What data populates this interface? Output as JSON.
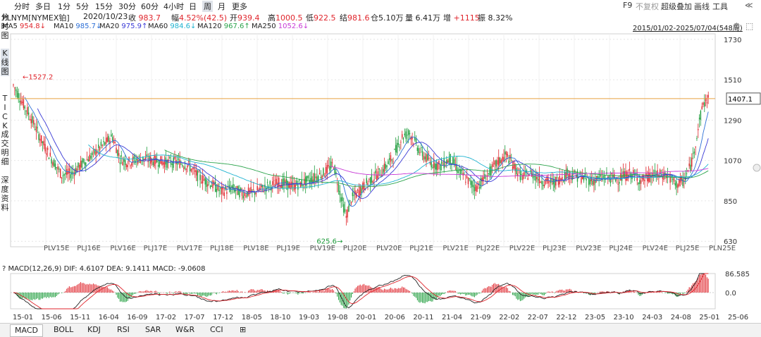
{
  "toolbar": {
    "items": [
      "分时",
      "多日",
      "1分",
      "5分",
      "15分",
      "30分",
      "60分",
      "4小时",
      "日",
      "周",
      "月",
      "更多"
    ],
    "active_index": 9,
    "right": {
      "f9": "F9",
      "fuquan": "不复权",
      "overlay": "超级叠加",
      "draw": "画线",
      "tools": "工具",
      "collapse": "≪"
    }
  },
  "info": {
    "symbol": "PLNYM[NYMEX铂]",
    "date": "2020/10/23",
    "close_label": "收",
    "close": "983.7",
    "change_label": "幅",
    "change": "4.52%(42.5)",
    "open_label": "开",
    "open": "939.4",
    "high_label": "高",
    "high": "1000.5",
    "low_label": "低",
    "low": "922.5",
    "settle_label": "结",
    "settle": "981.6",
    "oi_label": "仓",
    "oi": "5.10万",
    "vol_label": "量",
    "vol": "6.41万",
    "inc_label": "增",
    "inc": "+1115",
    "amp_label": "振",
    "amp": "8.32%",
    "range": "2015/01/02-2025/07/04(548周)"
  },
  "ma": [
    {
      "label": "MA5",
      "value": "954.8↓",
      "color": "#e0262d"
    },
    {
      "label": "MA10",
      "value": "985.7↓",
      "color": "#2c6fd6"
    },
    {
      "label": "MA20",
      "value": "975.9↑",
      "color": "#3a3ad6"
    },
    {
      "label": "MA60",
      "value": "984.6↓",
      "color": "#1fb3d0"
    },
    {
      "label": "MA120",
      "value": "967.6↑",
      "color": "#2aa34a"
    },
    {
      "label": "MA250",
      "value": "1052.6↓",
      "color": "#c83ad6"
    }
  ],
  "side": {
    "fenshi": "分时图",
    "kline": "K线图",
    "tick": "TICK",
    "detail": "成交明细",
    "depth": "深度资料"
  },
  "chart_data": {
    "type": "candlestick",
    "timeframe": "weekly",
    "y_ticks": [
      1730,
      1510,
      1290,
      1070,
      850,
      630
    ],
    "ylim": [
      600,
      1760
    ],
    "horizontal_line": 1407.1,
    "annotations": {
      "max": "1527.2",
      "min": "625.6"
    },
    "contract_labels": [
      "PLV15E",
      "PLJ16E",
      "PLV16E",
      "PLJ17E",
      "PLV17E",
      "PLJ18E",
      "PLV18E",
      "PLJ19E",
      "PLV19E",
      "PLJ20E",
      "PLV20E",
      "PLJ21E",
      "PLV21E",
      "PLJ22E",
      "PLV22E",
      "PLJ23E",
      "PLV23E",
      "PLJ24E",
      "PLV24E",
      "PLJ25E",
      "PLN25E"
    ],
    "price_path": [
      [
        0,
        1480
      ],
      [
        6,
        1400
      ],
      [
        14,
        1300
      ],
      [
        22,
        1180
      ],
      [
        30,
        1080
      ],
      [
        38,
        990
      ],
      [
        46,
        1000
      ],
      [
        54,
        1050
      ],
      [
        62,
        1100
      ],
      [
        70,
        1150
      ],
      [
        78,
        1200
      ],
      [
        84,
        1080
      ],
      [
        90,
        1060
      ],
      [
        100,
        1080
      ],
      [
        110,
        1070
      ],
      [
        120,
        1060
      ],
      [
        130,
        1060
      ],
      [
        138,
        1040
      ],
      [
        146,
        980
      ],
      [
        156,
        940
      ],
      [
        164,
        900
      ],
      [
        172,
        920
      ],
      [
        180,
        890
      ],
      [
        190,
        900
      ],
      [
        200,
        930
      ],
      [
        210,
        950
      ],
      [
        220,
        930
      ],
      [
        232,
        960
      ],
      [
        244,
        1000
      ],
      [
        252,
        1050
      ],
      [
        258,
        870
      ],
      [
        262,
        760
      ],
      [
        266,
        860
      ],
      [
        272,
        900
      ],
      [
        280,
        960
      ],
      [
        290,
        1010
      ],
      [
        298,
        1080
      ],
      [
        306,
        1200
      ],
      [
        312,
        1220
      ],
      [
        320,
        1120
      ],
      [
        328,
        1060
      ],
      [
        336,
        1040
      ],
      [
        344,
        1080
      ],
      [
        352,
        1000
      ],
      [
        358,
        960
      ],
      [
        364,
        920
      ],
      [
        372,
        980
      ],
      [
        380,
        1050
      ],
      [
        388,
        1100
      ],
      [
        394,
        1040
      ],
      [
        400,
        980
      ],
      [
        408,
        1000
      ],
      [
        416,
        960
      ],
      [
        426,
        950
      ],
      [
        436,
        1000
      ],
      [
        446,
        980
      ],
      [
        456,
        960
      ],
      [
        466,
        980
      ],
      [
        476,
        970
      ],
      [
        486,
        1000
      ],
      [
        494,
        960
      ],
      [
        504,
        990
      ],
      [
        514,
        990
      ],
      [
        522,
        940
      ],
      [
        528,
        960
      ],
      [
        534,
        1060
      ],
      [
        540,
        1280
      ],
      [
        543,
        1380
      ],
      [
        547,
        1407
      ]
    ],
    "macd": {
      "label": "MACD(12,26,9)",
      "dif_label": "DIF",
      "dif": "4.6107",
      "dea_label": "DEA",
      "dea": "9.1411",
      "macd_label": "MACD",
      "macd": "-9.0608",
      "y_ticks": [
        "86.585",
        "0.0"
      ]
    },
    "x_ticks": [
      "15-01",
      "15-06",
      "15-11",
      "16-04",
      "16-09",
      "17-02",
      "17-07",
      "17-12",
      "18-05",
      "18-10",
      "19-03",
      "19-08",
      "20-01",
      "20-06",
      "20-11",
      "21-04",
      "21-09",
      "22-02",
      "22-07",
      "22-12",
      "23-05",
      "23-10",
      "24-03",
      "24-08",
      "25-01",
      "25-06"
    ]
  },
  "bottom_tabs": [
    "MACD",
    "BOLL",
    "KDJ",
    "RSI",
    "SAR",
    "W&R",
    "CCI",
    "⊞"
  ],
  "colors": {
    "up": "#e0262d",
    "down": "#1c9c3a",
    "grid": "#e6e6e6",
    "hline": "#e8a040"
  }
}
